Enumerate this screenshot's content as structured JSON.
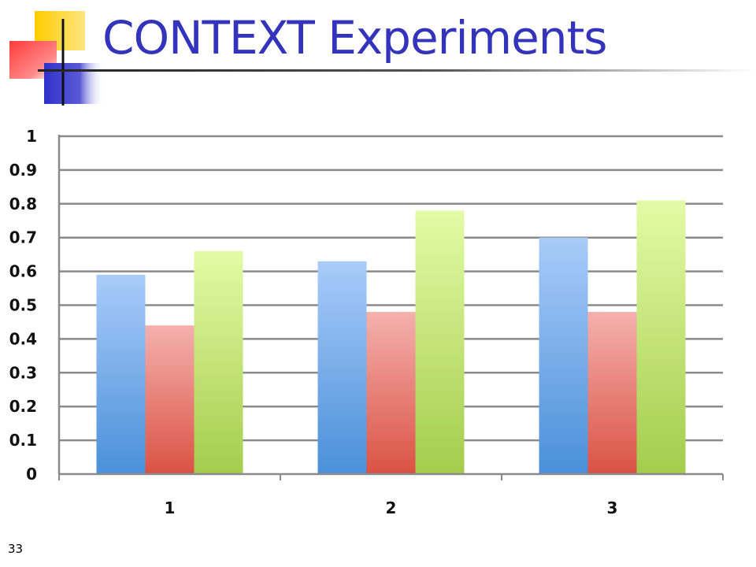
{
  "slide": {
    "title": "CONTEXT Experiments",
    "number": "33"
  },
  "colors": {
    "title": "#3333bb",
    "series": [
      {
        "top": "#a9cbf9",
        "bottom": "#4a90d9"
      },
      {
        "top": "#f4b1ae",
        "bottom": "#da5244"
      },
      {
        "top": "#e3fba6",
        "bottom": "#a4cc4c"
      }
    ]
  },
  "chart_data": {
    "type": "bar",
    "categories": [
      "1",
      "2",
      "3"
    ],
    "series": [
      {
        "values": [
          0.59,
          0.63,
          0.7
        ]
      },
      {
        "values": [
          0.44,
          0.48,
          0.48
        ]
      },
      {
        "values": [
          0.66,
          0.78,
          0.81
        ]
      }
    ],
    "ylim": [
      0,
      1
    ],
    "yticks": [
      "0",
      "0.1",
      "0.2",
      "0.3",
      "0.4",
      "0.5",
      "0.6",
      "0.7",
      "0.8",
      "0.9",
      "1"
    ],
    "grid": true,
    "legend": "none"
  }
}
